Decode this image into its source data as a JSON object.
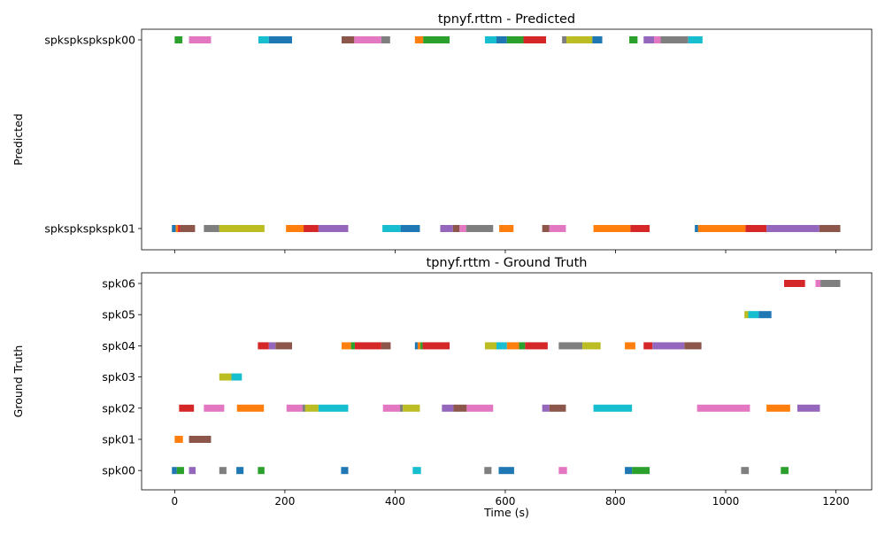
{
  "chart_data": [
    {
      "type": "timeline",
      "title": "tpnyf.rttm - Predicted",
      "xlabel": "",
      "ylabel": "Predicted",
      "xlim": [
        -60,
        1265
      ],
      "x_ticks": [
        0,
        200,
        400,
        600,
        800,
        1000,
        1200
      ],
      "x_tick_labels_shown": false,
      "tracks": [
        "spkspkspkspk01",
        "spkspkspkspk00"
      ],
      "segments": [
        {
          "track": "spkspkspkspk00",
          "start": 0,
          "end": 14,
          "color": "#2ca02c"
        },
        {
          "track": "spkspkspkspk00",
          "start": 26,
          "end": 66,
          "color": "#e377c2"
        },
        {
          "track": "spkspkspkspk00",
          "start": 152,
          "end": 171,
          "color": "#17becf"
        },
        {
          "track": "spkspkspkspk00",
          "start": 171,
          "end": 213,
          "color": "#1f77b4"
        },
        {
          "track": "spkspkspkspk00",
          "start": 303,
          "end": 326,
          "color": "#8c564b"
        },
        {
          "track": "spkspkspkspk00",
          "start": 326,
          "end": 375,
          "color": "#e377c2"
        },
        {
          "track": "spkspkspkspk00",
          "start": 375,
          "end": 391,
          "color": "#7f7f7f"
        },
        {
          "track": "spkspkspkspk00",
          "start": 436,
          "end": 451,
          "color": "#ff7f0e"
        },
        {
          "track": "spkspkspkspk00",
          "start": 451,
          "end": 499,
          "color": "#2ca02c"
        },
        {
          "track": "spkspkspkspk00",
          "start": 563,
          "end": 584,
          "color": "#17becf"
        },
        {
          "track": "spkspkspkspk00",
          "start": 584,
          "end": 603,
          "color": "#1f77b4"
        },
        {
          "track": "spkspkspkspk00",
          "start": 603,
          "end": 633,
          "color": "#2ca02c"
        },
        {
          "track": "spkspkspkspk00",
          "start": 633,
          "end": 674,
          "color": "#d62728"
        },
        {
          "track": "spkspkspkspk00",
          "start": 703,
          "end": 711,
          "color": "#7f7f7f"
        },
        {
          "track": "spkspkspkspk00",
          "start": 711,
          "end": 758,
          "color": "#bcbd22"
        },
        {
          "track": "spkspkspkspk00",
          "start": 758,
          "end": 776,
          "color": "#1f77b4"
        },
        {
          "track": "spkspkspkspk00",
          "start": 825,
          "end": 840,
          "color": "#2ca02c"
        },
        {
          "track": "spkspkspkspk00",
          "start": 851,
          "end": 870,
          "color": "#9467bd"
        },
        {
          "track": "spkspkspkspk00",
          "start": 870,
          "end": 882,
          "color": "#e377c2"
        },
        {
          "track": "spkspkspkspk00",
          "start": 882,
          "end": 932,
          "color": "#7f7f7f"
        },
        {
          "track": "spkspkspkspk00",
          "start": 932,
          "end": 958,
          "color": "#17becf"
        },
        {
          "track": "spkspkspkspk01",
          "start": -5,
          "end": 2,
          "color": "#1f77b4"
        },
        {
          "track": "spkspkspkspk01",
          "start": 2,
          "end": 6,
          "color": "#ff7f0e"
        },
        {
          "track": "spkspkspkspk01",
          "start": 6,
          "end": 10,
          "color": "#d62728"
        },
        {
          "track": "spkspkspkspk01",
          "start": 10,
          "end": 37,
          "color": "#8c564b"
        },
        {
          "track": "spkspkspkspk01",
          "start": 53,
          "end": 81,
          "color": "#7f7f7f"
        },
        {
          "track": "spkspkspkspk01",
          "start": 81,
          "end": 163,
          "color": "#bcbd22"
        },
        {
          "track": "spkspkspkspk01",
          "start": 202,
          "end": 234,
          "color": "#ff7f0e"
        },
        {
          "track": "spkspkspkspk01",
          "start": 234,
          "end": 261,
          "color": "#d62728"
        },
        {
          "track": "spkspkspkspk01",
          "start": 261,
          "end": 315,
          "color": "#9467bd"
        },
        {
          "track": "spkspkspkspk01",
          "start": 377,
          "end": 410,
          "color": "#17becf"
        },
        {
          "track": "spkspkspkspk01",
          "start": 410,
          "end": 445,
          "color": "#1f77b4"
        },
        {
          "track": "spkspkspkspk01",
          "start": 482,
          "end": 505,
          "color": "#9467bd"
        },
        {
          "track": "spkspkspkspk01",
          "start": 505,
          "end": 517,
          "color": "#8c564b"
        },
        {
          "track": "spkspkspkspk01",
          "start": 517,
          "end": 529,
          "color": "#e377c2"
        },
        {
          "track": "spkspkspkspk01",
          "start": 529,
          "end": 578,
          "color": "#7f7f7f"
        },
        {
          "track": "spkspkspkspk01",
          "start": 589,
          "end": 615,
          "color": "#ff7f0e"
        },
        {
          "track": "spkspkspkspk01",
          "start": 667,
          "end": 680,
          "color": "#8c564b"
        },
        {
          "track": "spkspkspkspk01",
          "start": 680,
          "end": 710,
          "color": "#e377c2"
        },
        {
          "track": "spkspkspkspk01",
          "start": 760,
          "end": 827,
          "color": "#ff7f0e"
        },
        {
          "track": "spkspkspkspk01",
          "start": 827,
          "end": 862,
          "color": "#d62728"
        },
        {
          "track": "spkspkspkspk01",
          "start": 944,
          "end": 950,
          "color": "#1f77b4"
        },
        {
          "track": "spkspkspkspk01",
          "start": 950,
          "end": 1036,
          "color": "#ff7f0e"
        },
        {
          "track": "spkspkspkspk01",
          "start": 1036,
          "end": 1074,
          "color": "#d62728"
        },
        {
          "track": "spkspkspkspk01",
          "start": 1074,
          "end": 1170,
          "color": "#9467bd"
        },
        {
          "track": "spkspkspkspk01",
          "start": 1170,
          "end": 1208,
          "color": "#8c564b"
        }
      ]
    },
    {
      "type": "timeline",
      "title": "tpnyf.rttm - Ground Truth",
      "xlabel": "Time (s)",
      "ylabel": "Ground Truth",
      "xlim": [
        -60,
        1265
      ],
      "x_ticks": [
        0,
        200,
        400,
        600,
        800,
        1000,
        1200
      ],
      "x_tick_labels_shown": true,
      "tracks": [
        "spk00",
        "spk01",
        "spk02",
        "spk03",
        "spk04",
        "spk05",
        "spk06"
      ],
      "segments": [
        {
          "track": "spk06",
          "start": 1106,
          "end": 1144,
          "color": "#d62728"
        },
        {
          "track": "spk06",
          "start": 1163,
          "end": 1172,
          "color": "#e377c2"
        },
        {
          "track": "spk06",
          "start": 1172,
          "end": 1208,
          "color": "#7f7f7f"
        },
        {
          "track": "spk05",
          "start": 1034,
          "end": 1041,
          "color": "#bcbd22"
        },
        {
          "track": "spk05",
          "start": 1041,
          "end": 1060,
          "color": "#17becf"
        },
        {
          "track": "spk05",
          "start": 1060,
          "end": 1083,
          "color": "#1f77b4"
        },
        {
          "track": "spk04",
          "start": 151,
          "end": 171,
          "color": "#d62728"
        },
        {
          "track": "spk04",
          "start": 171,
          "end": 183,
          "color": "#9467bd"
        },
        {
          "track": "spk04",
          "start": 183,
          "end": 213,
          "color": "#8c564b"
        },
        {
          "track": "spk04",
          "start": 303,
          "end": 320,
          "color": "#ff7f0e"
        },
        {
          "track": "spk04",
          "start": 320,
          "end": 327,
          "color": "#2ca02c"
        },
        {
          "track": "spk04",
          "start": 327,
          "end": 375,
          "color": "#d62728"
        },
        {
          "track": "spk04",
          "start": 375,
          "end": 392,
          "color": "#8c564b"
        },
        {
          "track": "spk04",
          "start": 436,
          "end": 441,
          "color": "#1f77b4"
        },
        {
          "track": "spk04",
          "start": 441,
          "end": 446,
          "color": "#ff7f0e"
        },
        {
          "track": "spk04",
          "start": 446,
          "end": 450,
          "color": "#2ca02c"
        },
        {
          "track": "spk04",
          "start": 450,
          "end": 499,
          "color": "#d62728"
        },
        {
          "track": "spk04",
          "start": 563,
          "end": 584,
          "color": "#bcbd22"
        },
        {
          "track": "spk04",
          "start": 584,
          "end": 603,
          "color": "#17becf"
        },
        {
          "track": "spk04",
          "start": 603,
          "end": 625,
          "color": "#ff7f0e"
        },
        {
          "track": "spk04",
          "start": 625,
          "end": 636,
          "color": "#2ca02c"
        },
        {
          "track": "spk04",
          "start": 636,
          "end": 677,
          "color": "#d62728"
        },
        {
          "track": "spk04",
          "start": 697,
          "end": 740,
          "color": "#7f7f7f"
        },
        {
          "track": "spk04",
          "start": 740,
          "end": 773,
          "color": "#bcbd22"
        },
        {
          "track": "spk04",
          "start": 817,
          "end": 836,
          "color": "#ff7f0e"
        },
        {
          "track": "spk04",
          "start": 851,
          "end": 867,
          "color": "#d62728"
        },
        {
          "track": "spk04",
          "start": 867,
          "end": 925,
          "color": "#9467bd"
        },
        {
          "track": "spk04",
          "start": 925,
          "end": 956,
          "color": "#8c564b"
        },
        {
          "track": "spk03",
          "start": 81,
          "end": 103,
          "color": "#bcbd22"
        },
        {
          "track": "spk03",
          "start": 103,
          "end": 122,
          "color": "#17becf"
        },
        {
          "track": "spk02",
          "start": 8,
          "end": 35,
          "color": "#d62728"
        },
        {
          "track": "spk02",
          "start": 53,
          "end": 90,
          "color": "#e377c2"
        },
        {
          "track": "spk02",
          "start": 113,
          "end": 162,
          "color": "#ff7f0e"
        },
        {
          "track": "spk02",
          "start": 203,
          "end": 232,
          "color": "#e377c2"
        },
        {
          "track": "spk02",
          "start": 232,
          "end": 237,
          "color": "#7f7f7f"
        },
        {
          "track": "spk02",
          "start": 237,
          "end": 261,
          "color": "#bcbd22"
        },
        {
          "track": "spk02",
          "start": 261,
          "end": 315,
          "color": "#17becf"
        },
        {
          "track": "spk02",
          "start": 378,
          "end": 409,
          "color": "#e377c2"
        },
        {
          "track": "spk02",
          "start": 409,
          "end": 414,
          "color": "#7f7f7f"
        },
        {
          "track": "spk02",
          "start": 414,
          "end": 445,
          "color": "#bcbd22"
        },
        {
          "track": "spk02",
          "start": 485,
          "end": 506,
          "color": "#9467bd"
        },
        {
          "track": "spk02",
          "start": 506,
          "end": 530,
          "color": "#8c564b"
        },
        {
          "track": "spk02",
          "start": 530,
          "end": 578,
          "color": "#e377c2"
        },
        {
          "track": "spk02",
          "start": 667,
          "end": 680,
          "color": "#9467bd"
        },
        {
          "track": "spk02",
          "start": 680,
          "end": 710,
          "color": "#8c564b"
        },
        {
          "track": "spk02",
          "start": 760,
          "end": 830,
          "color": "#17becf"
        },
        {
          "track": "spk02",
          "start": 948,
          "end": 1044,
          "color": "#e377c2"
        },
        {
          "track": "spk02",
          "start": 1074,
          "end": 1117,
          "color": "#ff7f0e"
        },
        {
          "track": "spk02",
          "start": 1130,
          "end": 1171,
          "color": "#9467bd"
        },
        {
          "track": "spk01",
          "start": 0,
          "end": 15,
          "color": "#ff7f0e"
        },
        {
          "track": "spk01",
          "start": 26,
          "end": 66,
          "color": "#8c564b"
        },
        {
          "track": "spk00",
          "start": -5,
          "end": 4,
          "color": "#1f77b4"
        },
        {
          "track": "spk00",
          "start": 4,
          "end": 17,
          "color": "#2ca02c"
        },
        {
          "track": "spk00",
          "start": 26,
          "end": 38,
          "color": "#9467bd"
        },
        {
          "track": "spk00",
          "start": 81,
          "end": 94,
          "color": "#7f7f7f"
        },
        {
          "track": "spk00",
          "start": 112,
          "end": 125,
          "color": "#1f77b4"
        },
        {
          "track": "spk00",
          "start": 151,
          "end": 163,
          "color": "#2ca02c"
        },
        {
          "track": "spk00",
          "start": 302,
          "end": 315,
          "color": "#1f77b4"
        },
        {
          "track": "spk00",
          "start": 432,
          "end": 447,
          "color": "#17becf"
        },
        {
          "track": "spk00",
          "start": 562,
          "end": 575,
          "color": "#7f7f7f"
        },
        {
          "track": "spk00",
          "start": 588,
          "end": 616,
          "color": "#1f77b4"
        },
        {
          "track": "spk00",
          "start": 697,
          "end": 712,
          "color": "#e377c2"
        },
        {
          "track": "spk00",
          "start": 817,
          "end": 830,
          "color": "#1f77b4"
        },
        {
          "track": "spk00",
          "start": 830,
          "end": 862,
          "color": "#2ca02c"
        },
        {
          "track": "spk00",
          "start": 1028,
          "end": 1042,
          "color": "#7f7f7f"
        },
        {
          "track": "spk00",
          "start": 1100,
          "end": 1114,
          "color": "#2ca02c"
        }
      ]
    }
  ]
}
